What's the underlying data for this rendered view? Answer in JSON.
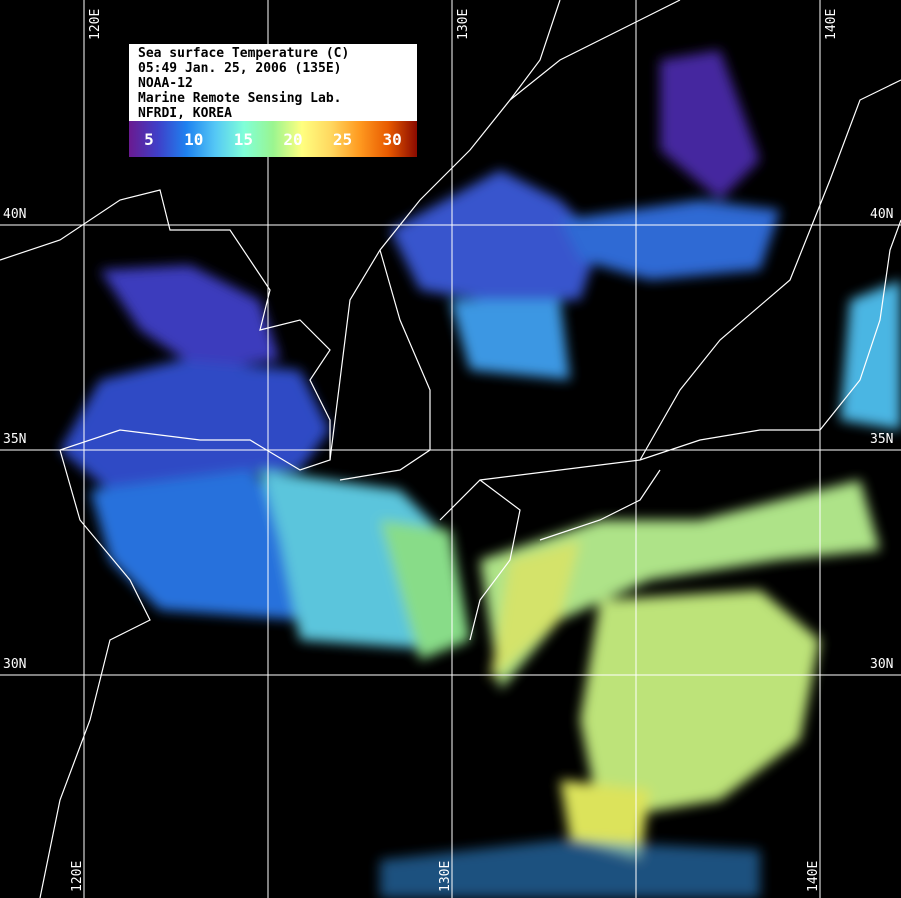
{
  "legend": {
    "lines": [
      "Sea surface Temperature (C)",
      "05:49 Jan. 25, 2006 (135E)",
      "NOAA-12",
      "Marine Remote Sensing Lab.",
      "NFRDI, KOREA"
    ],
    "scale_ticks": [
      "5",
      "10",
      "15",
      "20",
      "25",
      "30"
    ],
    "colors": [
      "#6a1a90",
      "#3f3fc8",
      "#1e82f0",
      "#55c8f5",
      "#80ffd8",
      "#9af590",
      "#ffff80",
      "#ffd860",
      "#ff9a20",
      "#e85a00",
      "#8a0a00"
    ]
  },
  "grid": {
    "lon_labels_top": [
      "120E",
      "130E",
      "140E"
    ],
    "lon_labels_bottom": [
      "120E",
      "130E",
      "140E"
    ],
    "lat_labels_left": [
      "40N",
      "35N",
      "30N"
    ],
    "lat_labels_right": [
      "40N",
      "35N",
      "30N"
    ]
  }
}
